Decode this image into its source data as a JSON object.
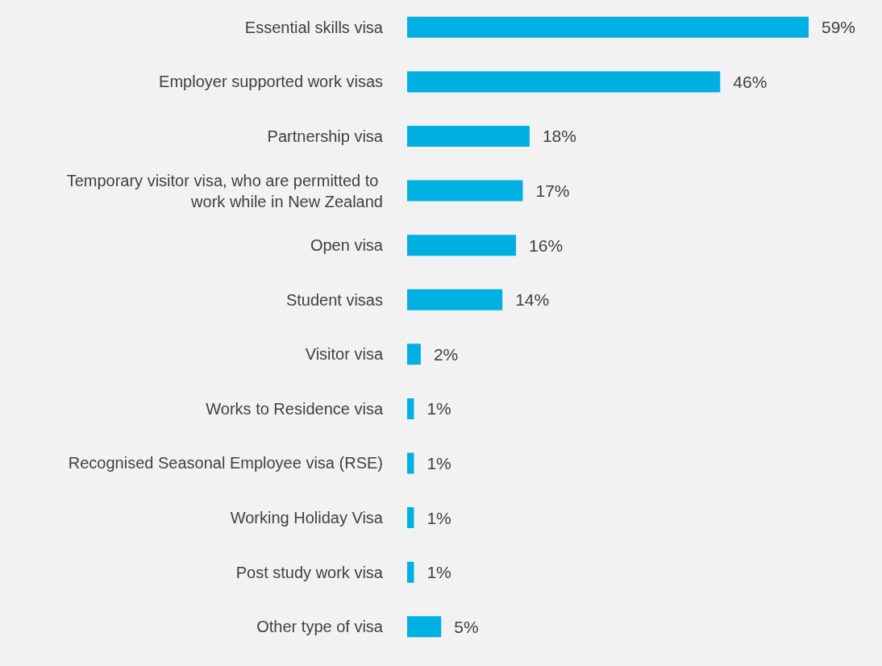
{
  "chart_data": {
    "type": "bar",
    "orientation": "horizontal",
    "categories": [
      "Essential skills visa",
      "Employer supported work visas",
      "Partnership visa",
      "Temporary visitor visa, who are permitted to work while in New Zealand",
      "Open visa",
      "Student visas",
      "Visitor visa",
      "Works to Residence visa",
      "Recognised Seasonal Employee visa (RSE)",
      "Working Holiday Visa",
      "Post study work visa",
      "Other type of visa"
    ],
    "values": [
      59,
      46,
      18,
      17,
      16,
      14,
      2,
      1,
      1,
      1,
      1,
      5
    ],
    "value_labels": [
      "59%",
      "46%",
      "18%",
      "17%",
      "16%",
      "14%",
      "2%",
      "1%",
      "1%",
      "1%",
      "1%",
      "5%"
    ],
    "color": "#00b0e2"
  }
}
